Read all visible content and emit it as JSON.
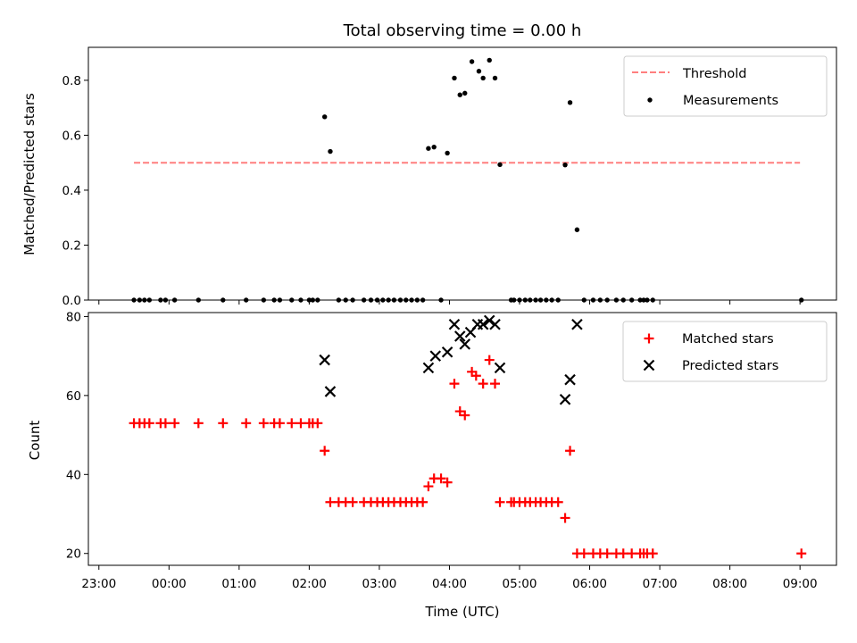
{
  "chart_data": [
    {
      "type": "scatter",
      "title": "Total observing time = 0.00 h",
      "xlabel": "",
      "ylabel": "Matched/Predicted stars",
      "ylim": [
        0,
        0.92
      ],
      "yticks": [
        0.0,
        0.2,
        0.4,
        0.6,
        0.8
      ],
      "ytick_labels": [
        "0.0",
        "0.2",
        "0.4",
        "0.6",
        "0.8"
      ],
      "xlim_hours": [
        -1.15,
        9.52
      ],
      "legend": {
        "placement": "top-right",
        "entries": [
          "Threshold",
          "Measurements"
        ]
      },
      "threshold": {
        "name": "Threshold",
        "value": 0.5,
        "x_range": [
          -0.5,
          9.0
        ],
        "color": "#ff7f7f",
        "style": "dashed"
      },
      "series": [
        {
          "name": "Measurements",
          "color": "#000000",
          "marker": "dot",
          "x": [
            -0.5,
            -0.42,
            -0.35,
            -0.28,
            -0.12,
            -0.05,
            0.08,
            0.42,
            0.77,
            1.1,
            1.35,
            1.5,
            1.58,
            1.75,
            1.88,
            2.0,
            2.05,
            2.12,
            2.22,
            2.3,
            2.42,
            2.52,
            2.62,
            2.78,
            2.88,
            2.97,
            3.05,
            3.13,
            3.21,
            3.3,
            3.38,
            3.46,
            3.54,
            3.62,
            3.7,
            3.78,
            3.88,
            3.97,
            4.07,
            4.15,
            4.22,
            4.32,
            4.42,
            4.48,
            4.57,
            4.65,
            4.72,
            4.88,
            4.92,
            5.0,
            5.08,
            5.15,
            5.23,
            5.3,
            5.38,
            5.46,
            5.55,
            5.65,
            5.72,
            5.82,
            5.92,
            6.05,
            6.15,
            6.25,
            6.38,
            6.48,
            6.6,
            6.72,
            6.77,
            6.82,
            6.9,
            9.02
          ],
          "y": [
            0,
            0,
            0,
            0,
            0,
            0,
            0,
            0,
            0,
            0,
            0,
            0,
            0,
            0,
            0,
            0,
            0,
            0,
            0.667,
            0.541,
            0,
            0,
            0,
            0,
            0,
            0,
            0,
            0,
            0,
            0,
            0,
            0,
            0,
            0,
            0.552,
            0.557,
            0,
            0.535,
            0.808,
            0.747,
            0.753,
            0.868,
            0.833,
            0.808,
            0.873,
            0.808,
            0.493,
            0,
            0,
            0,
            0,
            0,
            0,
            0,
            0,
            0,
            0,
            0.492,
            0.719,
            0.256,
            0,
            0,
            0,
            0,
            0,
            0,
            0,
            0,
            0,
            0,
            0,
            0
          ]
        }
      ]
    },
    {
      "type": "scatter",
      "title": "",
      "xlabel": "Time (UTC)",
      "ylabel": "Count",
      "ylim": [
        17,
        81
      ],
      "yticks": [
        20,
        40,
        60,
        80
      ],
      "ytick_labels": [
        "20",
        "40",
        "60",
        "80"
      ],
      "xlim_hours": [
        -1.15,
        9.52
      ],
      "xticks_hours": [
        -1,
        0,
        1,
        2,
        3,
        4,
        5,
        6,
        7,
        8,
        9
      ],
      "xtick_labels": [
        "23:00",
        "00:00",
        "01:00",
        "02:00",
        "03:00",
        "04:00",
        "05:00",
        "06:00",
        "07:00",
        "08:00",
        "09:00"
      ],
      "legend": {
        "placement": "top-right",
        "entries": [
          "Matched stars",
          "Predicted stars"
        ]
      },
      "series": [
        {
          "name": "Matched stars",
          "color": "#ff0000",
          "marker": "plus",
          "x": [
            -0.5,
            -0.42,
            -0.35,
            -0.28,
            -0.12,
            -0.05,
            0.08,
            0.42,
            0.77,
            1.1,
            1.35,
            1.5,
            1.58,
            1.75,
            1.88,
            2.0,
            2.05,
            2.12,
            2.22,
            2.3,
            2.42,
            2.52,
            2.62,
            2.78,
            2.88,
            2.97,
            3.05,
            3.13,
            3.21,
            3.3,
            3.38,
            3.46,
            3.54,
            3.62,
            3.7,
            3.78,
            3.88,
            3.97,
            4.07,
            4.15,
            4.22,
            4.32,
            4.38,
            4.48,
            4.57,
            4.65,
            4.72,
            4.88,
            4.92,
            5.0,
            5.08,
            5.15,
            5.23,
            5.3,
            5.38,
            5.46,
            5.55,
            5.65,
            5.72,
            5.82,
            5.92,
            6.05,
            6.15,
            6.25,
            6.38,
            6.48,
            6.6,
            6.72,
            6.77,
            6.82,
            6.9,
            9.02
          ],
          "y": [
            53,
            53,
            53,
            53,
            53,
            53,
            53,
            53,
            53,
            53,
            53,
            53,
            53,
            53,
            53,
            53,
            53,
            53,
            46,
            33,
            33,
            33,
            33,
            33,
            33,
            33,
            33,
            33,
            33,
            33,
            33,
            33,
            33,
            33,
            37,
            39,
            39,
            38,
            63,
            56,
            55,
            66,
            65,
            63,
            69,
            63,
            33,
            33,
            33,
            33,
            33,
            33,
            33,
            33,
            33,
            33,
            33,
            29,
            46,
            20,
            20,
            20,
            20,
            20,
            20,
            20,
            20,
            20,
            20,
            20,
            20,
            20
          ]
        },
        {
          "name": "Predicted stars",
          "color": "#000000",
          "marker": "x",
          "x": [
            2.22,
            2.3,
            3.7,
            3.8,
            3.97,
            4.07,
            4.15,
            4.22,
            4.3,
            4.4,
            4.48,
            4.57,
            4.65,
            4.72,
            5.65,
            5.72,
            5.82
          ],
          "y": [
            69,
            61,
            67,
            70,
            71,
            78,
            75,
            73,
            76,
            78,
            78,
            79,
            78,
            67,
            59,
            64,
            78
          ]
        }
      ]
    }
  ]
}
